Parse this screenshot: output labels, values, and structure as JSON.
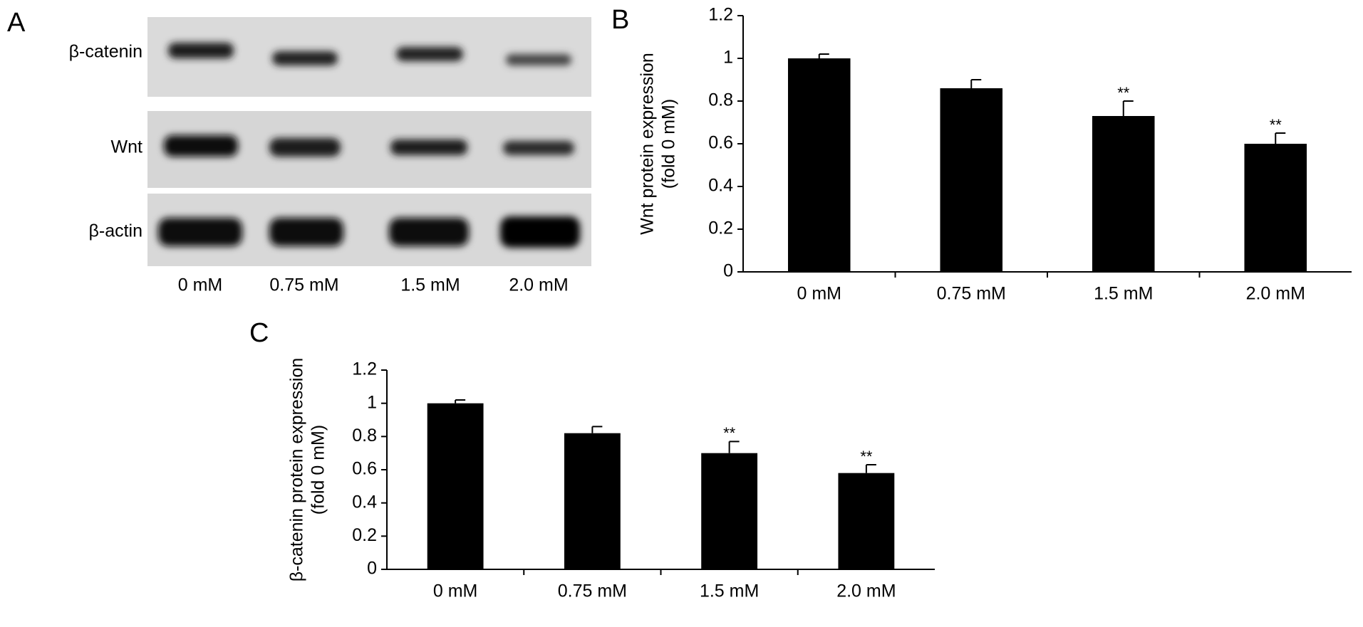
{
  "blot": {
    "panel_label": "A",
    "rows": [
      "β-catenin",
      "Wnt",
      "β-actin"
    ],
    "lanes": [
      "0 mM",
      "0.75 mM",
      "1.5 mM",
      "2.0 mM"
    ]
  },
  "chart_data": [
    {
      "type": "bar",
      "panel_label": "B",
      "ylabel": [
        "Wnt protein expression",
        "(fold 0 mM)"
      ],
      "categories": [
        "0 mM",
        "0.75 mM",
        "1.5 mM",
        "2.0 mM"
      ],
      "values": [
        1.0,
        0.86,
        0.73,
        0.6
      ],
      "errors": [
        0.02,
        0.04,
        0.07,
        0.05
      ],
      "annotations": [
        null,
        null,
        "**",
        "**"
      ],
      "color": "#000000",
      "ylim": [
        0,
        1.2
      ],
      "yticks": [
        0,
        0.2,
        0.4,
        0.6,
        0.8,
        1,
        1.2
      ]
    },
    {
      "type": "bar",
      "panel_label": "C",
      "ylabel": [
        "β-catenin protein expression",
        "(fold 0 mM)"
      ],
      "categories": [
        "0 mM",
        "0.75 mM",
        "1.5 mM",
        "2.0 mM"
      ],
      "values": [
        1.0,
        0.82,
        0.7,
        0.58
      ],
      "errors": [
        0.02,
        0.04,
        0.07,
        0.05
      ],
      "annotations": [
        null,
        null,
        "**",
        "**"
      ],
      "color": "#000000",
      "ylim": [
        0,
        1.2
      ],
      "yticks": [
        0,
        0.2,
        0.4,
        0.6,
        0.8,
        1,
        1.2
      ]
    }
  ]
}
